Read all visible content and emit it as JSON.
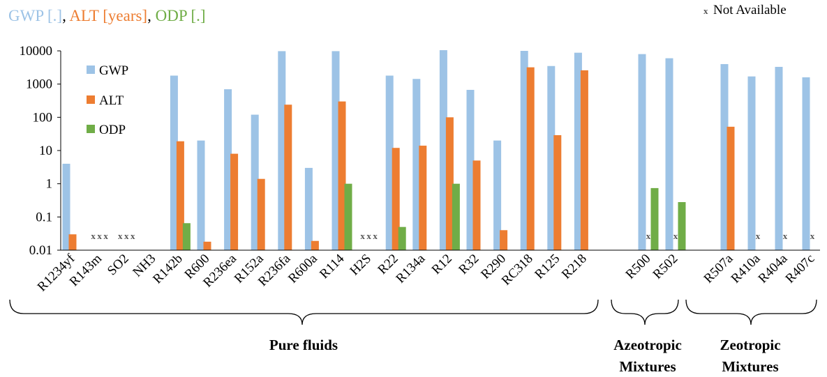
{
  "chart_data": {
    "type": "bar",
    "title_parts": [
      {
        "text": "GWP [.]",
        "color": "#9DC3E6"
      },
      {
        "text": ", ",
        "color": "#000000"
      },
      {
        "text": "ALT [years]",
        "color": "#ED7D31"
      },
      {
        "text": ", ",
        "color": "#000000"
      },
      {
        "text": "ODP [.]",
        "color": "#70AD47"
      }
    ],
    "na_note": {
      "mark": "x",
      "text": "Not Available"
    },
    "yscale": "log",
    "ylim": [
      0.01,
      10000
    ],
    "yticks": [
      "0.01",
      "0.1",
      "1",
      "10",
      "100",
      "1000",
      "10000"
    ],
    "legend_position": "top-left",
    "categories": [
      "R1234yf",
      "R143m",
      "SO2",
      "NH3",
      "R142b",
      "R600",
      "R236ea",
      "R152a",
      "R236fa",
      "R600a",
      "R114",
      "H2S",
      "R22",
      "R134a",
      "R12",
      "R32",
      "R290",
      "RC318",
      "R125",
      "R218",
      "R500",
      "R502",
      "R507a",
      "R410a",
      "R404a",
      "R407c"
    ],
    "series": [
      {
        "name": "GWP",
        "color": "#9DC3E6",
        "values": [
          4,
          null,
          null,
          null,
          1800,
          20,
          700,
          120,
          9800,
          3,
          9800,
          null,
          1800,
          1430,
          10500,
          670,
          20,
          10000,
          3500,
          8800,
          8000,
          6000,
          4000,
          1700,
          3300,
          1600
        ]
      },
      {
        "name": "ALT",
        "color": "#ED7D31",
        "values": [
          0.03,
          null,
          null,
          null,
          19,
          0.018,
          8,
          1.4,
          240,
          0.019,
          300,
          null,
          12,
          14,
          100,
          5,
          0.04,
          3200,
          29,
          2600,
          null,
          null,
          52,
          null,
          null,
          null
        ]
      },
      {
        "name": "ODP",
        "color": "#70AD47",
        "values": [
          null,
          null,
          null,
          null,
          0.065,
          null,
          null,
          null,
          null,
          null,
          1,
          null,
          0.05,
          null,
          1,
          null,
          null,
          null,
          null,
          null,
          0.74,
          0.28,
          null,
          null,
          null,
          null
        ]
      }
    ],
    "not_available": {
      "R143m": [
        "GWP",
        "ALT",
        "ODP"
      ],
      "SO2": [
        "GWP",
        "ALT",
        "ODP"
      ],
      "H2S": [
        "GWP",
        "ALT",
        "ODP"
      ],
      "R500": [
        "ALT"
      ],
      "R502": [
        "ALT"
      ],
      "R410a": [
        "ALT"
      ],
      "R404a": [
        "ALT"
      ],
      "R407c": [
        "ALT"
      ]
    },
    "groups": [
      {
        "label_lines": [
          "Pure fluids"
        ],
        "from": "R1234yf",
        "to": "R218"
      },
      {
        "label_lines": [
          "Azeotropic",
          "Mixtures"
        ],
        "from": "R500",
        "to": "R502"
      },
      {
        "label_lines": [
          "Zeotropic",
          "Mixtures"
        ],
        "from": "R507a",
        "to": "R407c"
      }
    ]
  }
}
